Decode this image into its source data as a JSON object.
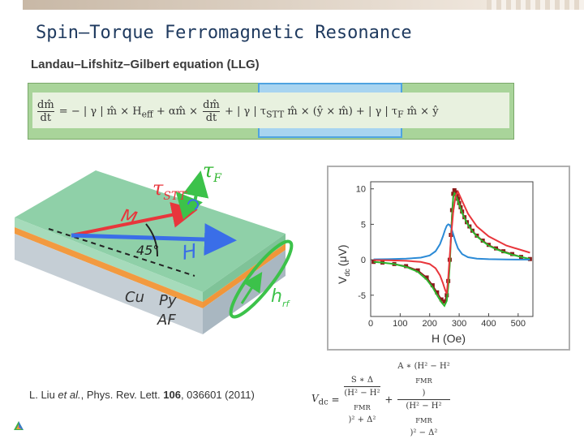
{
  "slide": {
    "title": "Spin–Torque Ferromagnetic Resonance",
    "subtitle": "Landau–Lifshitz–Gilbert equation (LLG)",
    "citation_prefix": "L. Liu ",
    "citation_etal": "et al.",
    "citation_mid": ", Phys. Rev. Lett. ",
    "citation_vol": "106",
    "citation_suffix": ", 036601 (2011)"
  },
  "equation": {
    "dm": "dm̂",
    "dt": "dt",
    "part1": "= − | γ | m̂ × H",
    "eff": "eff",
    "part2": "+ αm̂ ×",
    "part3": "+ | γ | τ",
    "stt": "STT",
    "part4": " m̂ × (ŷ × m̂)",
    "part5": "+ | γ | τ",
    "f": "F",
    "part6": " m̂ × ŷ"
  },
  "illustration": {
    "tau_stt": "τ",
    "tau_stt_sub": "STT",
    "tau_f": "τ",
    "tau_f_sub": "F",
    "m_label": "M",
    "h_label": "H",
    "angle_label": "45°",
    "hrf_label": "h",
    "hrf_sub": "rf",
    "cu_label": "Cu",
    "py_label": "Py",
    "af_label": "AF",
    "colors": {
      "top": "#8fd0a8",
      "orange": "#f0963a",
      "bottom": "#b7c3cc",
      "green": "#3cc24a",
      "red": "#e8363c",
      "blue": "#3a6ee8"
    }
  },
  "chart_data": {
    "type": "line",
    "xlabel": "H (Oe)",
    "ylabel": "V",
    "ylabel_sub": "dc",
    "ylabel_unit": "(μV)",
    "xlim": [
      0,
      550
    ],
    "ylim": [
      -8,
      11
    ],
    "xticks": [
      0,
      100,
      200,
      300,
      400,
      500
    ],
    "yticks": [
      -5,
      0,
      5,
      10
    ],
    "series": [
      {
        "color": "#8b1a1a",
        "style": "squares",
        "x": [
          10,
          40,
          80,
          120,
          160,
          190,
          210,
          225,
          240,
          250,
          258,
          263,
          268,
          272,
          276,
          280,
          284,
          288,
          292,
          296,
          300,
          305,
          310,
          318,
          326,
          335,
          345,
          360,
          380,
          400,
          425,
          450,
          480,
          510,
          540
        ],
        "y": [
          -0.3,
          -0.4,
          -0.6,
          -0.9,
          -1.5,
          -2.5,
          -3.6,
          -4.6,
          -5.6,
          -5.9,
          -5.0,
          -3.0,
          0.0,
          3.5,
          7.0,
          9.3,
          9.8,
          9.5,
          9.0,
          8.6,
          8.0,
          7.4,
          6.8,
          6.0,
          5.3,
          4.7,
          4.1,
          3.4,
          2.7,
          2.1,
          1.6,
          1.2,
          0.8,
          0.4,
          0.1
        ]
      },
      {
        "color": "#2db52d",
        "style": "line",
        "x": [
          10,
          40,
          80,
          120,
          160,
          190,
          210,
          225,
          240,
          250,
          258,
          263,
          268,
          272,
          276,
          280,
          284,
          288,
          292,
          296,
          300,
          305,
          310,
          318,
          326,
          335,
          345,
          360,
          380,
          400,
          425,
          450,
          480,
          510,
          540
        ],
        "y": [
          -0.3,
          -0.4,
          -0.6,
          -1.0,
          -1.7,
          -2.8,
          -3.9,
          -5.0,
          -6.0,
          -6.5,
          -5.8,
          -3.8,
          -0.8,
          2.8,
          6.3,
          8.8,
          9.4,
          9.2,
          8.7,
          8.3,
          7.8,
          7.2,
          6.6,
          5.9,
          5.2,
          4.6,
          4.0,
          3.3,
          2.6,
          2.0,
          1.5,
          1.1,
          0.7,
          0.4,
          0.1
        ]
      },
      {
        "color": "#2b8ad6",
        "style": "line",
        "x": [
          10,
          60,
          120,
          170,
          200,
          220,
          235,
          245,
          252,
          258,
          263,
          268,
          273,
          280,
          288,
          296,
          310,
          330,
          360,
          400,
          460,
          540
        ],
        "y": [
          0.05,
          0.08,
          0.15,
          0.3,
          0.6,
          1.2,
          2.2,
          3.3,
          4.2,
          4.8,
          5.0,
          4.9,
          4.5,
          3.6,
          2.5,
          1.6,
          0.8,
          0.35,
          0.15,
          0.08,
          0.04,
          0.02
        ]
      },
      {
        "color": "#e8363c",
        "style": "line",
        "x": [
          10,
          60,
          120,
          170,
          200,
          220,
          235,
          245,
          252,
          258,
          263,
          268,
          273,
          280,
          288,
          296,
          310,
          330,
          360,
          400,
          460,
          540
        ],
        "y": [
          -0.05,
          -0.08,
          -0.15,
          -0.3,
          -0.6,
          -1.2,
          -2.2,
          -3.3,
          -4.2,
          -4.8,
          -2.5,
          0.5,
          3.5,
          6.8,
          9.0,
          9.6,
          8.3,
          6.5,
          4.7,
          3.3,
          2.0,
          1.0
        ]
      }
    ]
  },
  "vdc_formula": {
    "lhs": "V",
    "lhs_sub": "dc",
    "eq": "=",
    "num1": "S ∗ Δ",
    "den1": "(H² − H²",
    "den1_sub": "FMR",
    "den1_end": ")² + Δ²",
    "plus": "+",
    "num2": "A ∗ (H² − H²",
    "num2_sub": "FMR",
    "num2_end": ")",
    "den2": "(H² − H²",
    "den2_sub": "FMR",
    "den2_end": ")² − Δ²"
  }
}
